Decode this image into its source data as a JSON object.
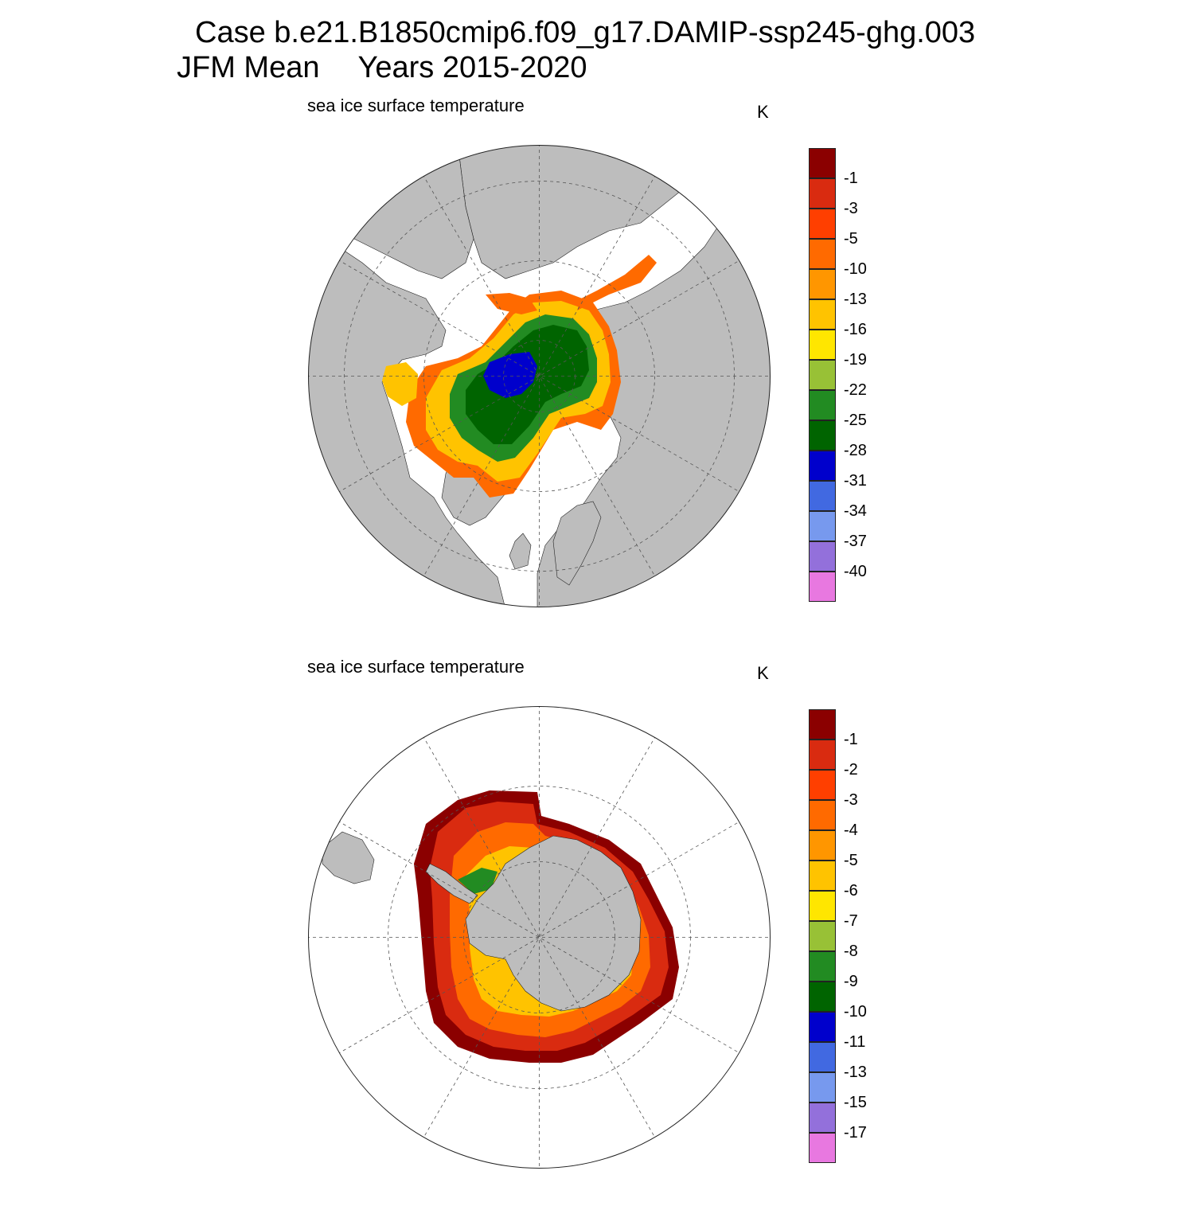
{
  "header": {
    "case_line": "Case b.e21.B1850cmip6.f09_g17.DAMIP-ssp245-ghg.003",
    "season": "JFM Mean",
    "years": "Years 2015-2020"
  },
  "panels": [
    {
      "id": "north",
      "hemisphere": "Arctic",
      "title": "sea ice surface temperature",
      "units": "K",
      "colorbar": {
        "labels": [
          "-1",
          "-3",
          "-5",
          "-10",
          "-13",
          "-16",
          "-19",
          "-22",
          "-25",
          "-28",
          "-31",
          "-34",
          "-37",
          "-40"
        ],
        "colors": [
          "#8b0000",
          "#d92b10",
          "#ff3f00",
          "#ff6a00",
          "#ff9600",
          "#ffc300",
          "#ffe600",
          "#98c136",
          "#228b22",
          "#006400",
          "#0000cc",
          "#4169e1",
          "#7799ee",
          "#9370db",
          "#e878e0"
        ]
      }
    },
    {
      "id": "south",
      "hemisphere": "Antarctic",
      "title": "sea ice surface temperature",
      "units": "K",
      "colorbar": {
        "labels": [
          "-1",
          "-2",
          "-3",
          "-4",
          "-5",
          "-6",
          "-7",
          "-8",
          "-9",
          "-10",
          "-11",
          "-13",
          "-15",
          "-17"
        ],
        "colors": [
          "#8b0000",
          "#d92b10",
          "#ff3f00",
          "#ff6a00",
          "#ff9600",
          "#ffc300",
          "#ffe600",
          "#98c136",
          "#228b22",
          "#006400",
          "#0000cc",
          "#4169e1",
          "#7799ee",
          "#9370db",
          "#e878e0"
        ]
      }
    }
  ],
  "colors": {
    "land": "#bdbdbd",
    "ocean": "#ffffff",
    "grid": "#555555"
  }
}
